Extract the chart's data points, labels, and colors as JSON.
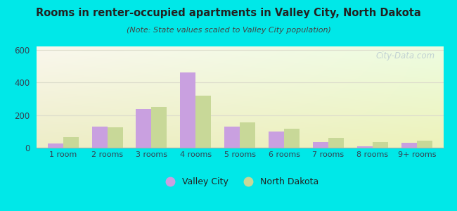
{
  "title": "Rooms in renter-occupied apartments in Valley City, North Dakota",
  "subtitle": "(Note: State values scaled to Valley City population)",
  "categories": [
    "1 room",
    "2 rooms",
    "3 rooms",
    "4 rooms",
    "5 rooms",
    "6 rooms",
    "7 rooms",
    "8 rooms",
    "9+ rooms"
  ],
  "valley_city": [
    25,
    130,
    235,
    460,
    130,
    100,
    35,
    10,
    30
  ],
  "north_dakota": [
    65,
    125,
    250,
    320,
    155,
    115,
    60,
    35,
    45
  ],
  "vc_color": "#c9a0e0",
  "nd_color": "#c8d898",
  "background_outer": "#00e8e8",
  "ylim": [
    0,
    620
  ],
  "yticks": [
    0,
    200,
    400,
    600
  ],
  "bar_width": 0.35,
  "legend_labels": [
    "Valley City",
    "North Dakota"
  ],
  "watermark": "City-Data.com",
  "title_color": "#222222",
  "subtitle_color": "#444444",
  "tick_color": "#334455",
  "grid_color": "#ddddcc"
}
